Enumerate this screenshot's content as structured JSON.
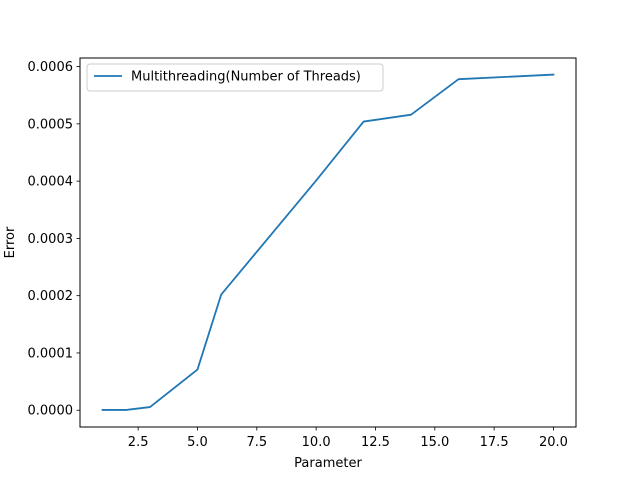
{
  "chart_data": {
    "type": "line",
    "title": "",
    "xlabel": "Parameter",
    "ylabel": "Error",
    "xlim": [
      0.05,
      20.95
    ],
    "ylim": [
      -2.93e-05,
      0.000615
    ],
    "xticks": [
      2.5,
      5.0,
      7.5,
      10.0,
      12.5,
      15.0,
      17.5,
      20.0
    ],
    "xtick_labels": [
      "2.5",
      "5.0",
      "7.5",
      "10.0",
      "12.5",
      "15.0",
      "17.5",
      "20.0"
    ],
    "yticks": [
      0.0,
      0.0001,
      0.0002,
      0.0003,
      0.0004,
      0.0005,
      0.0006
    ],
    "ytick_labels": [
      "0.0000",
      "0.0001",
      "0.0002",
      "0.0003",
      "0.0004",
      "0.0005",
      "0.0006"
    ],
    "grid": false,
    "legend_position": "top-left",
    "series": [
      {
        "name": "Multithreading(Number of Threads)",
        "color": "#1f77b4",
        "x": [
          1,
          2,
          3,
          5,
          6,
          10,
          12,
          14,
          16,
          20
        ],
        "y": [
          5e-07,
          5e-07,
          5.5e-06,
          7.1e-05,
          0.000202,
          0.000401,
          0.000504,
          0.000516,
          0.000578,
          0.000586
        ]
      }
    ]
  }
}
